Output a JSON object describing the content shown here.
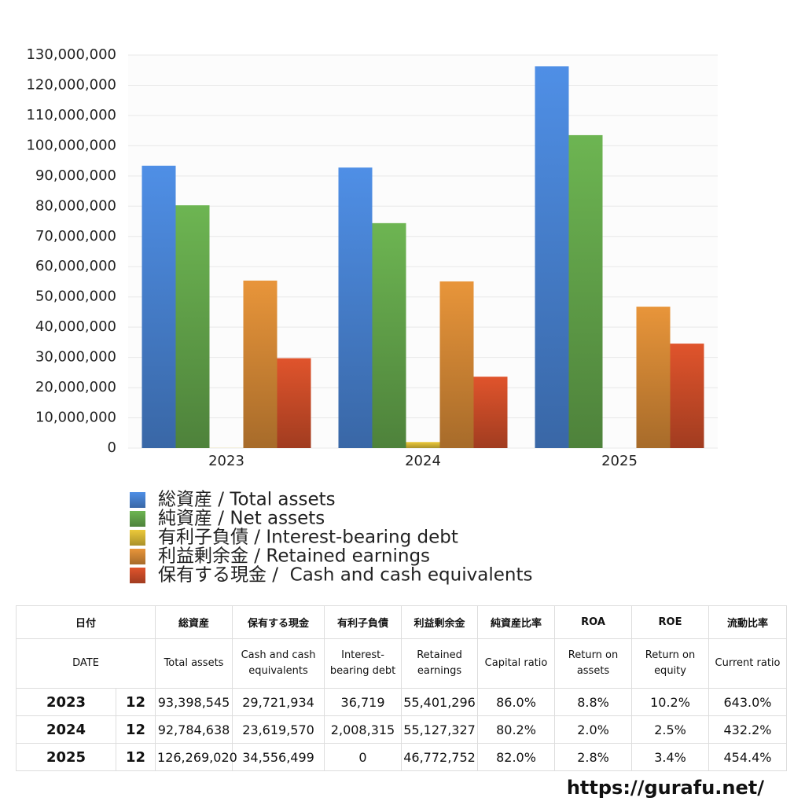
{
  "chart_data": {
    "type": "bar",
    "categories": [
      "2023",
      "2024",
      "2025"
    ],
    "series": [
      {
        "name": "総資産 / Total assets",
        "color": "#4f8fe6",
        "values": [
          93398545,
          92784638,
          126269020
        ]
      },
      {
        "name": "純資産 / Net assets",
        "color": "#6db552",
        "values": [
          80300000,
          74400000,
          103500000
        ]
      },
      {
        "name": "有利子負債 / Interest-bearing debt",
        "color": "#ecc93a",
        "values": [
          36719,
          2008315,
          0
        ]
      },
      {
        "name": "利益剰余金 / Retained earnings",
        "color": "#e8953a",
        "values": [
          55401296,
          55127327,
          46772752
        ]
      },
      {
        "name": "保有する現金 /  Cash and cash equivalents",
        "color": "#e0542c",
        "values": [
          29721934,
          23619570,
          34556499
        ]
      }
    ],
    "ylim": [
      0,
      130000000
    ],
    "yticks": [
      0,
      {
        "value": 10000000,
        "label": "10,000,000"
      },
      {
        "value": 20000000,
        "label": "20,000,000"
      },
      {
        "value": 30000000,
        "label": "30,000,000"
      },
      {
        "value": 40000000,
        "label": "40,000,000"
      },
      {
        "value": 50000000,
        "label": "50,000,000"
      },
      {
        "value": 60000000,
        "label": "60,000,000"
      },
      {
        "value": 70000000,
        "label": "70,000,000"
      },
      {
        "value": 80000000,
        "label": "80,000,000"
      },
      {
        "value": 90000000,
        "label": "90,000,000"
      },
      {
        "value": 100000000,
        "label": "100,000,000"
      },
      {
        "value": 110000000,
        "label": "110,000,000"
      },
      {
        "value": 120000000,
        "label": "120,000,000"
      },
      {
        "value": 130000000,
        "label": "130,000,000"
      }
    ],
    "grid": true
  },
  "table": {
    "header": [
      [
        "日付",
        "総資産",
        "保有する現金",
        "有利子負債",
        "利益剰余金",
        "純資産比率",
        "ROA",
        "ROE",
        "流動比率"
      ],
      [
        "DATE",
        "Total assets",
        "Cash and cash equivalents",
        "Interest-bearing debt",
        "Retained earnings",
        "Capital ratio",
        "Return on assets",
        "Return on equity",
        "Current ratio"
      ]
    ],
    "rows": [
      [
        "2023",
        "12",
        "93,398,545",
        "29,721,934",
        "36,719",
        "55,401,296",
        "86.0%",
        "8.8%",
        "10.2%",
        "643.0%"
      ],
      [
        "2024",
        "12",
        "92,784,638",
        "23,619,570",
        "2,008,315",
        "55,127,327",
        "80.2%",
        "2.0%",
        "2.5%",
        "432.2%"
      ],
      [
        "2025",
        "12",
        "126,269,020",
        "34,556,499",
        "0",
        "46,772,752",
        "82.0%",
        "2.8%",
        "3.4%",
        "454.4%"
      ]
    ]
  },
  "footer": "https://gurafu.net/"
}
